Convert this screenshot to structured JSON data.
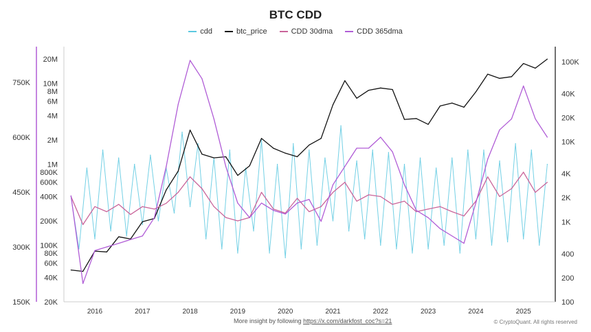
{
  "chart_data": {
    "type": "line",
    "title": "BTC CDD",
    "legend_position": "top",
    "grid": false,
    "x_ticks": [
      "2016",
      "2017",
      "2018",
      "2019",
      "2020",
      "2021",
      "2022",
      "2023",
      "2024",
      "2025"
    ],
    "axes": {
      "cdd_365dma_axis": {
        "scale": "linear",
        "range": [
          150000,
          750000
        ],
        "ticks": [
          {
            "v": 150000,
            "label": "150K"
          },
          {
            "v": 300000,
            "label": "300K"
          },
          {
            "v": 450000,
            "label": "450K"
          },
          {
            "v": 600000,
            "label": "600K"
          },
          {
            "v": 750000,
            "label": "750K"
          }
        ]
      },
      "cdd_axis": {
        "scale": "log",
        "range": [
          20000,
          20000000
        ],
        "ticks": [
          {
            "v": 20000,
            "label": "20K"
          },
          {
            "v": 40000,
            "label": "40K"
          },
          {
            "v": 60000,
            "label": "60K"
          },
          {
            "v": 80000,
            "label": "80K"
          },
          {
            "v": 100000,
            "label": "100K"
          },
          {
            "v": 200000,
            "label": "200K"
          },
          {
            "v": 400000,
            "label": "400K"
          },
          {
            "v": 600000,
            "label": "600K"
          },
          {
            "v": 800000,
            "label": "800K"
          },
          {
            "v": 1000000,
            "label": "1M"
          },
          {
            "v": 2000000,
            "label": "2M"
          },
          {
            "v": 4000000,
            "label": "4M"
          },
          {
            "v": 6000000,
            "label": "6M"
          },
          {
            "v": 8000000,
            "label": "8M"
          },
          {
            "v": 10000000,
            "label": "10M"
          },
          {
            "v": 20000000,
            "label": "20M"
          }
        ]
      },
      "price_axis": {
        "scale": "log",
        "range": [
          100,
          100000
        ],
        "ticks": [
          {
            "v": 100,
            "label": "100"
          },
          {
            "v": 200,
            "label": "200"
          },
          {
            "v": 400,
            "label": "400"
          },
          {
            "v": 1000,
            "label": "1K"
          },
          {
            "v": 2000,
            "label": "2K"
          },
          {
            "v": 4000,
            "label": "4K"
          },
          {
            "v": 10000,
            "label": "10K"
          },
          {
            "v": 20000,
            "label": "20K"
          },
          {
            "v": 40000,
            "label": "40K"
          },
          {
            "v": 100000,
            "label": "100K"
          }
        ]
      }
    },
    "quarterly_x": [
      "2015-07",
      "2015-10",
      "2016-01",
      "2016-04",
      "2016-07",
      "2016-10",
      "2017-01",
      "2017-04",
      "2017-07",
      "2017-10",
      "2018-01",
      "2018-04",
      "2018-07",
      "2018-10",
      "2019-01",
      "2019-04",
      "2019-07",
      "2019-10",
      "2020-01",
      "2020-04",
      "2020-07",
      "2020-10",
      "2021-01",
      "2021-04",
      "2021-07",
      "2021-10",
      "2022-01",
      "2022-04",
      "2022-07",
      "2022-10",
      "2023-01",
      "2023-04",
      "2023-07",
      "2023-10",
      "2024-01",
      "2024-04",
      "2024-07",
      "2024-10",
      "2025-01",
      "2025-04",
      "2025-07"
    ],
    "series": [
      {
        "name": "cdd",
        "axis": "cdd_axis",
        "color": "#5bc8e0",
        "x": [
          "2015-07",
          "2015-09",
          "2015-11",
          "2016-01",
          "2016-03",
          "2016-05",
          "2016-07",
          "2016-09",
          "2016-11",
          "2017-01",
          "2017-03",
          "2017-05",
          "2017-07",
          "2017-09",
          "2017-11",
          "2018-01",
          "2018-03",
          "2018-05",
          "2018-07",
          "2018-09",
          "2018-11",
          "2019-01",
          "2019-03",
          "2019-05",
          "2019-07",
          "2019-09",
          "2019-11",
          "2020-01",
          "2020-03",
          "2020-05",
          "2020-07",
          "2020-09",
          "2020-11",
          "2021-01",
          "2021-03",
          "2021-05",
          "2021-07",
          "2021-09",
          "2021-11",
          "2022-01",
          "2022-03",
          "2022-05",
          "2022-07",
          "2022-09",
          "2022-11",
          "2023-01",
          "2023-03",
          "2023-05",
          "2023-07",
          "2023-09",
          "2023-11",
          "2024-01",
          "2024-03",
          "2024-05",
          "2024-07",
          "2024-09",
          "2024-11",
          "2025-01",
          "2025-03",
          "2025-05",
          "2025-07"
        ],
        "values": [
          400000,
          90000,
          900000,
          120000,
          1500000,
          150000,
          1200000,
          130000,
          1000000,
          180000,
          1300000,
          200000,
          900000,
          250000,
          2500000,
          300000,
          1800000,
          120000,
          1200000,
          90000,
          1500000,
          80000,
          900000,
          150000,
          2000000,
          80000,
          1000000,
          70000,
          1800000,
          90000,
          1500000,
          100000,
          1200000,
          200000,
          3000000,
          150000,
          1100000,
          120000,
          1500000,
          100000,
          1400000,
          90000,
          1000000,
          80000,
          1200000,
          90000,
          900000,
          100000,
          1200000,
          80000,
          1500000,
          120000,
          1500000,
          100000,
          1100000,
          110000,
          1800000,
          120000,
          1500000,
          100000,
          1000000
        ]
      },
      {
        "name": "btc_price",
        "axis": "price_axis",
        "color": "#111111",
        "values": [
          250,
          240,
          430,
          420,
          650,
          610,
          1000,
          1100,
          2500,
          4300,
          14000,
          7000,
          6300,
          6500,
          3800,
          5000,
          11000,
          8300,
          7200,
          6500,
          9100,
          11000,
          29000,
          58000,
          35000,
          44000,
          47000,
          45000,
          19000,
          19500,
          16500,
          28000,
          30500,
          27000,
          42000,
          70000,
          62000,
          65000,
          95000,
          83000,
          108000
        ]
      },
      {
        "name": "CDD 30dma",
        "axis": "cdd_axis",
        "color": "#c9649a",
        "values": [
          400000,
          180000,
          300000,
          260000,
          320000,
          240000,
          300000,
          280000,
          330000,
          450000,
          700000,
          500000,
          300000,
          220000,
          200000,
          220000,
          450000,
          280000,
          250000,
          380000,
          260000,
          300000,
          450000,
          600000,
          350000,
          420000,
          400000,
          320000,
          350000,
          260000,
          280000,
          300000,
          260000,
          230000,
          350000,
          700000,
          400000,
          500000,
          800000,
          450000,
          600000
        ]
      },
      {
        "name": "CDD 365dma",
        "axis": "cdd_365dma_axis",
        "color": "#b05cd6",
        "values": [
          440000,
          200000,
          290000,
          300000,
          310000,
          320000,
          330000,
          380000,
          520000,
          690000,
          810000,
          760000,
          650000,
          520000,
          420000,
          380000,
          420000,
          400000,
          390000,
          420000,
          430000,
          370000,
          470000,
          520000,
          570000,
          570000,
          600000,
          560000,
          470000,
          400000,
          380000,
          350000,
          330000,
          310000,
          420000,
          540000,
          620000,
          650000,
          740000,
          650000,
          600000
        ]
      }
    ]
  },
  "footer": {
    "text": "More insight by following",
    "link": "https://x.com/darkfost_coc?s=21",
    "copyright": "© CryptoQuant. All rights reserved"
  }
}
